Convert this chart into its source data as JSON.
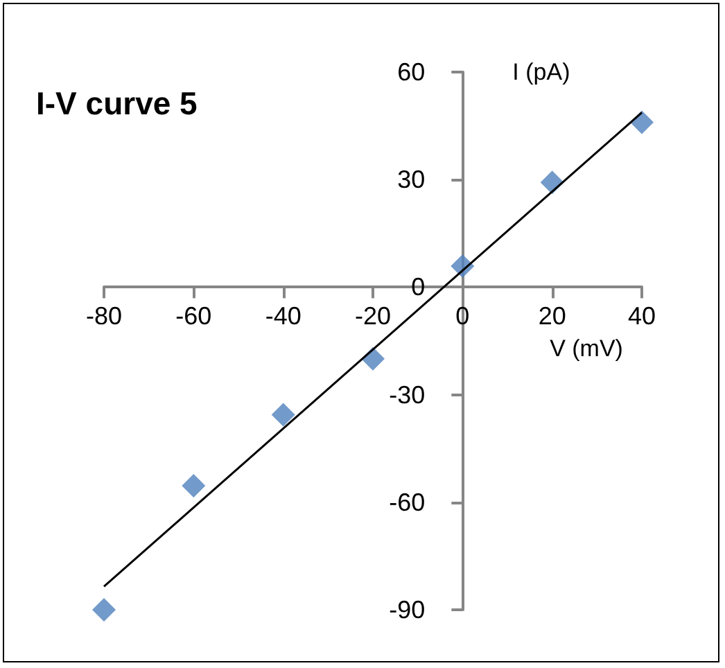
{
  "chart_data": {
    "type": "scatter",
    "title": "I-V curve 5",
    "xlabel": "V (mV)",
    "ylabel": "I (pA)",
    "xlim": [
      -80,
      40
    ],
    "xticks": [
      -80,
      -60,
      -40,
      -20,
      0,
      20,
      40
    ],
    "ylim": [
      -90,
      60
    ],
    "yticks": [
      -90,
      -60,
      -30,
      0,
      30,
      60
    ],
    "series": [
      {
        "color": "#4f81bd",
        "marker": "diamond",
        "x": [
          -80,
          -60,
          -40,
          -20,
          0,
          20,
          40
        ],
        "values": [
          -90,
          -55.4,
          -35.6,
          -20,
          5.9,
          29.2,
          46
        ]
      },
      {
        "type": "line",
        "color": "#000000",
        "marker": "none",
        "x": [
          -80,
          40
        ],
        "values": [
          -83.5,
          48.7
        ]
      }
    ]
  }
}
